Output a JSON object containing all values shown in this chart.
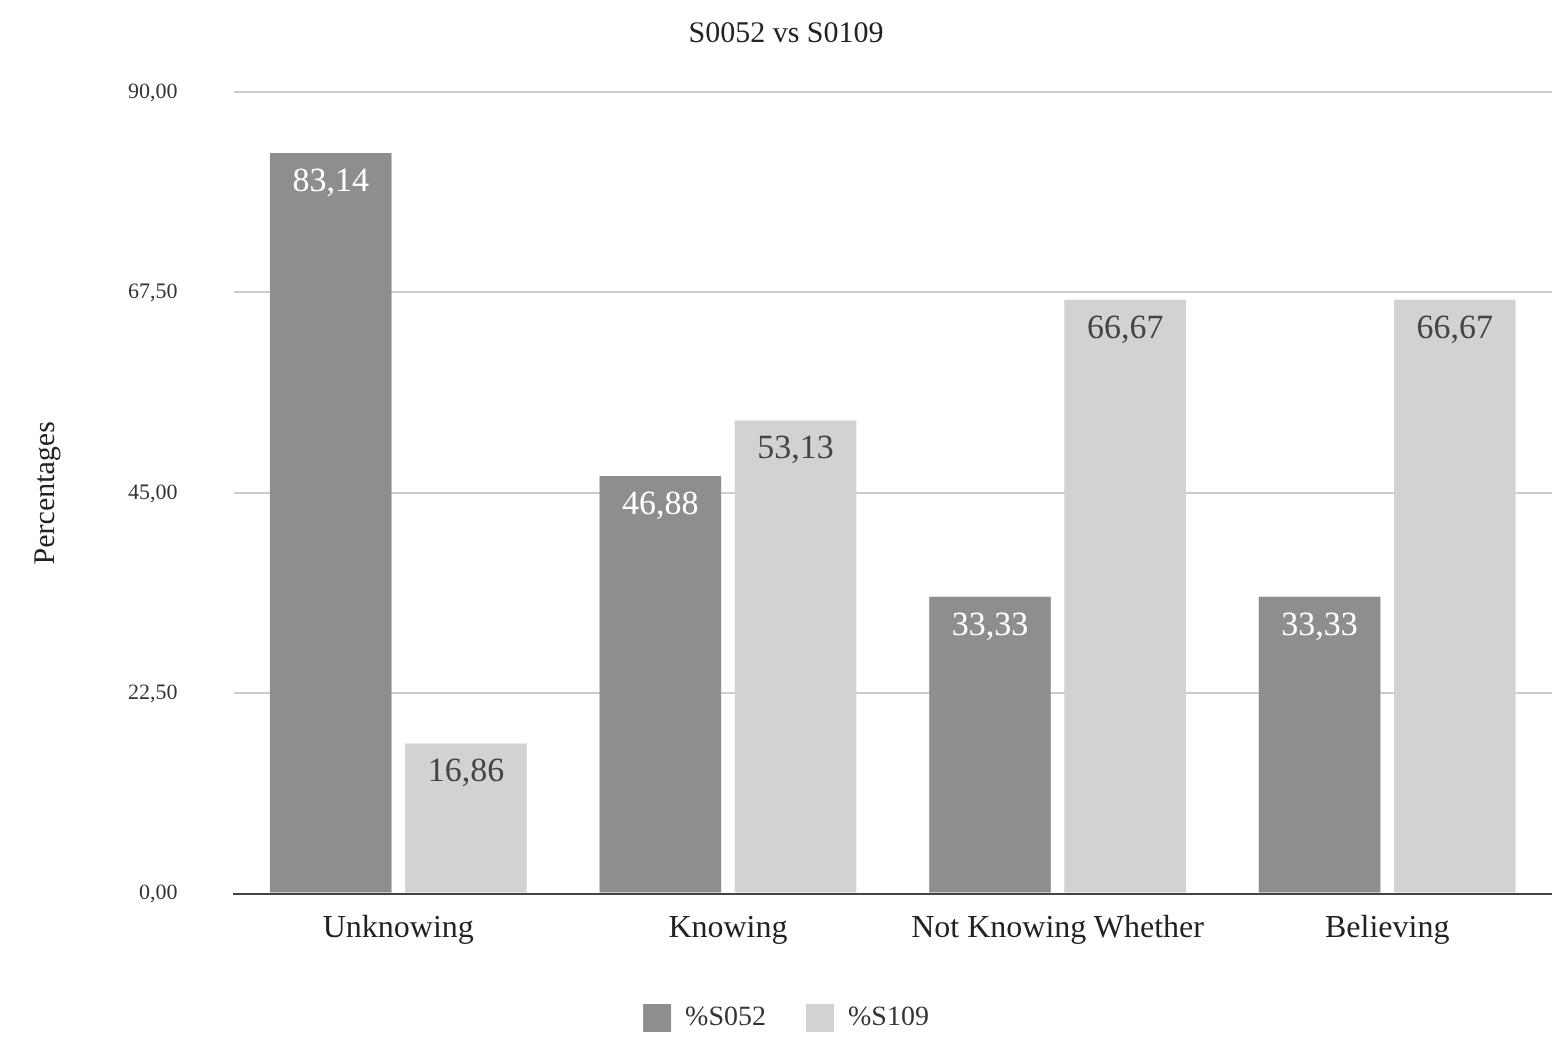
{
  "chart_data": {
    "type": "bar",
    "title": "S0052 vs S0109",
    "ylabel": "Percentages",
    "categories": [
      "Unknowing",
      "Knowing",
      "Not Knowing Whether",
      "Believing"
    ],
    "series": [
      {
        "name": "%S052",
        "color": "#8e8e8e",
        "values": [
          83.14,
          46.88,
          33.33,
          33.33
        ],
        "value_labels": [
          "83,14",
          "46,88",
          "33,33",
          "33,33"
        ]
      },
      {
        "name": "%S109",
        "color": "#d2d2d2",
        "values": [
          16.86,
          53.13,
          66.67,
          66.67
        ],
        "value_labels": [
          "16,86",
          "53,13",
          "66,67",
          "66,67"
        ]
      }
    ],
    "ylim": [
      0,
      90
    ],
    "yticks": [
      {
        "value": 0,
        "label": "0,00"
      },
      {
        "value": 22.5,
        "label": "22,50"
      },
      {
        "value": 45,
        "label": "45,00"
      },
      {
        "value": 67.5,
        "label": "67,50"
      },
      {
        "value": 90,
        "label": "90,00"
      }
    ],
    "grid": "y",
    "legend": "bottom"
  }
}
